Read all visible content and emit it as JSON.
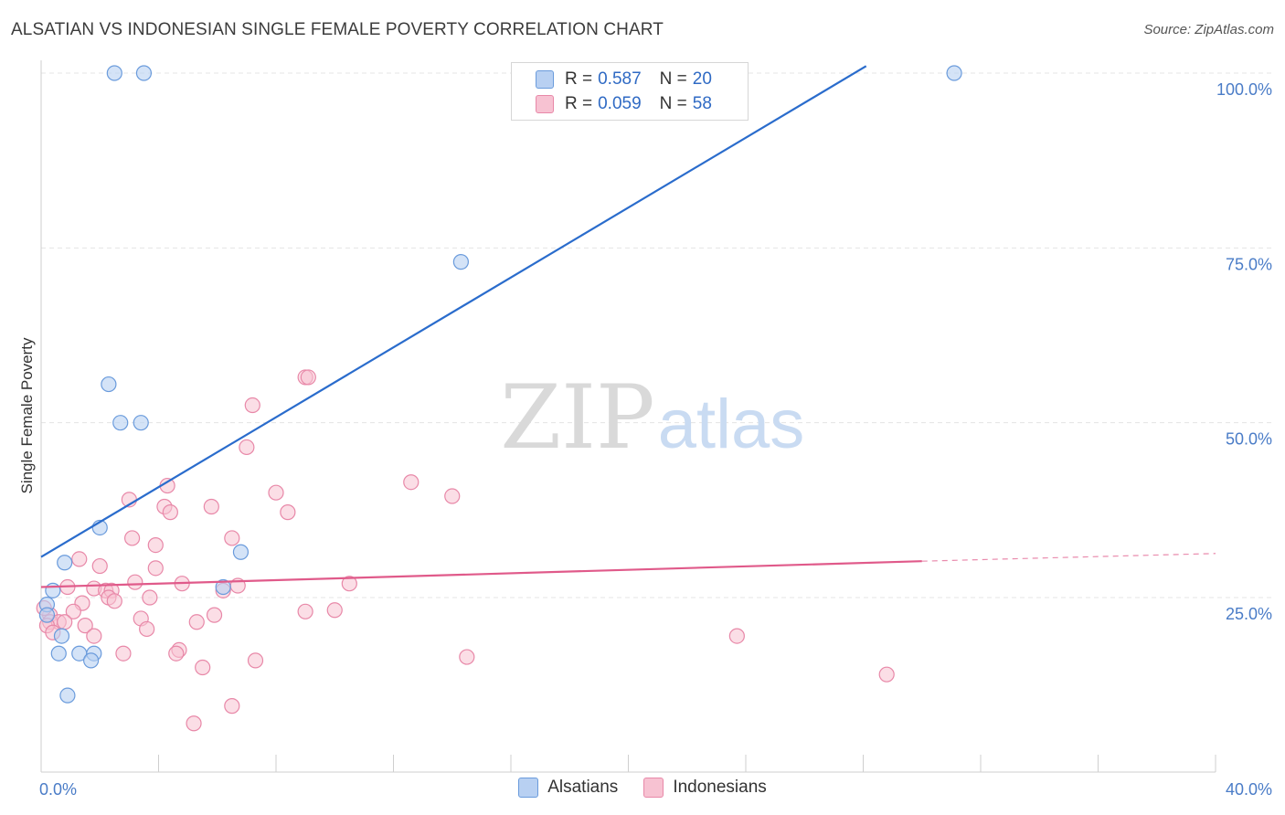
{
  "title": "ALSATIAN VS INDONESIAN SINGLE FEMALE POVERTY CORRELATION CHART",
  "source": "Source: ZipAtlas.com",
  "watermark": {
    "zip": "ZIP",
    "atlas": "atlas"
  },
  "colors": {
    "alsatian_fill": "#b8d0f2",
    "alsatian_stroke": "#6a9bdc",
    "alsatian_line": "#2a6ccc",
    "indonesian_fill": "#f7c2d2",
    "indonesian_stroke": "#e888a8",
    "indonesian_line": "#e05a8a",
    "tick_text": "#4a7cc7"
  },
  "legend": {
    "rows": [
      {
        "r_label": "R =",
        "r_value": "0.587",
        "n_label": "N =",
        "n_value": "20"
      },
      {
        "r_label": "R =",
        "r_value": "0.059",
        "n_label": "N =",
        "n_value": "58"
      }
    ]
  },
  "bottom_legend": {
    "alsatians": "Alsatians",
    "indonesians": "Indonesians"
  },
  "chart_data": {
    "type": "scatter",
    "title": "ALSATIAN VS INDONESIAN SINGLE FEMALE POVERTY CORRELATION CHART",
    "xlabel": "",
    "ylabel": "Single Female Poverty",
    "xlim": [
      0,
      40
    ],
    "ylim": [
      0,
      105
    ],
    "x_tick_labels": {
      "min": "0.0%",
      "max": "40.0%"
    },
    "y_ticks": [
      {
        "value": 25,
        "label": "25.0%"
      },
      {
        "value": 50,
        "label": "50.0%"
      },
      {
        "value": 75,
        "label": "75.0%"
      },
      {
        "value": 100,
        "label": "100.0%"
      }
    ],
    "series": [
      {
        "name": "Alsatians",
        "r": 0.587,
        "n": 20,
        "trend": {
          "x0": 0,
          "y0": 30.8,
          "x1": 28.1,
          "y1": 101.0
        },
        "points": [
          {
            "x": 2.5,
            "y": 100
          },
          {
            "x": 3.5,
            "y": 100
          },
          {
            "x": 31.1,
            "y": 100
          },
          {
            "x": 14.3,
            "y": 73
          },
          {
            "x": 2.3,
            "y": 55.5
          },
          {
            "x": 2.7,
            "y": 50
          },
          {
            "x": 3.4,
            "y": 50
          },
          {
            "x": 2.0,
            "y": 35
          },
          {
            "x": 6.8,
            "y": 31.5
          },
          {
            "x": 0.8,
            "y": 30
          },
          {
            "x": 0.4,
            "y": 26
          },
          {
            "x": 6.2,
            "y": 26.5
          },
          {
            "x": 0.2,
            "y": 24
          },
          {
            "x": 0.2,
            "y": 22.5
          },
          {
            "x": 0.7,
            "y": 19.5
          },
          {
            "x": 0.6,
            "y": 17
          },
          {
            "x": 1.3,
            "y": 17
          },
          {
            "x": 1.8,
            "y": 17
          },
          {
            "x": 1.7,
            "y": 16
          },
          {
            "x": 0.9,
            "y": 11
          }
        ]
      },
      {
        "name": "Indonesians",
        "r": 0.059,
        "n": 58,
        "trend": {
          "x0": 0,
          "y0": 26.5,
          "x1": 30.0,
          "y1": 30.2,
          "dash_x1": 40.0,
          "dash_y1": 31.3
        },
        "points": [
          {
            "x": 9.0,
            "y": 56.5
          },
          {
            "x": 9.1,
            "y": 56.5
          },
          {
            "x": 7.2,
            "y": 52.5
          },
          {
            "x": 7.0,
            "y": 46.5
          },
          {
            "x": 12.6,
            "y": 41.5
          },
          {
            "x": 4.3,
            "y": 41
          },
          {
            "x": 8.0,
            "y": 40
          },
          {
            "x": 14.0,
            "y": 39.5
          },
          {
            "x": 3.0,
            "y": 39
          },
          {
            "x": 4.2,
            "y": 38
          },
          {
            "x": 5.8,
            "y": 38
          },
          {
            "x": 4.4,
            "y": 37.2
          },
          {
            "x": 8.4,
            "y": 37.2
          },
          {
            "x": 3.1,
            "y": 33.5
          },
          {
            "x": 6.5,
            "y": 33.5
          },
          {
            "x": 3.9,
            "y": 32.5
          },
          {
            "x": 1.3,
            "y": 30.5
          },
          {
            "x": 2.0,
            "y": 29.5
          },
          {
            "x": 3.9,
            "y": 29.2
          },
          {
            "x": 3.2,
            "y": 27.2
          },
          {
            "x": 4.8,
            "y": 27.0
          },
          {
            "x": 6.7,
            "y": 26.7
          },
          {
            "x": 10.5,
            "y": 27.0
          },
          {
            "x": 0.9,
            "y": 26.5
          },
          {
            "x": 1.8,
            "y": 26.3
          },
          {
            "x": 2.2,
            "y": 26.0
          },
          {
            "x": 2.4,
            "y": 26.0
          },
          {
            "x": 6.2,
            "y": 26.0
          },
          {
            "x": 2.3,
            "y": 25.0
          },
          {
            "x": 2.5,
            "y": 24.5
          },
          {
            "x": 3.7,
            "y": 25.0
          },
          {
            "x": 1.4,
            "y": 24.2
          },
          {
            "x": 1.1,
            "y": 23.0
          },
          {
            "x": 9.0,
            "y": 23.0
          },
          {
            "x": 10.0,
            "y": 23.2
          },
          {
            "x": 0.3,
            "y": 22.5
          },
          {
            "x": 5.9,
            "y": 22.5
          },
          {
            "x": 0.3,
            "y": 21.5
          },
          {
            "x": 0.6,
            "y": 21.5
          },
          {
            "x": 0.8,
            "y": 21.5
          },
          {
            "x": 3.4,
            "y": 22.0
          },
          {
            "x": 5.3,
            "y": 21.5
          },
          {
            "x": 0.2,
            "y": 21.0
          },
          {
            "x": 1.5,
            "y": 21.0
          },
          {
            "x": 3.6,
            "y": 20.5
          },
          {
            "x": 0.4,
            "y": 20.0
          },
          {
            "x": 1.8,
            "y": 19.5
          },
          {
            "x": 23.7,
            "y": 19.5
          },
          {
            "x": 4.7,
            "y": 17.5
          },
          {
            "x": 2.8,
            "y": 17.0
          },
          {
            "x": 4.6,
            "y": 17.0
          },
          {
            "x": 14.5,
            "y": 16.5
          },
          {
            "x": 7.3,
            "y": 16.0
          },
          {
            "x": 5.5,
            "y": 15.0
          },
          {
            "x": 28.8,
            "y": 14.0
          },
          {
            "x": 6.5,
            "y": 9.5
          },
          {
            "x": 5.2,
            "y": 7.0
          },
          {
            "x": 0.1,
            "y": 23.5
          }
        ]
      }
    ]
  }
}
